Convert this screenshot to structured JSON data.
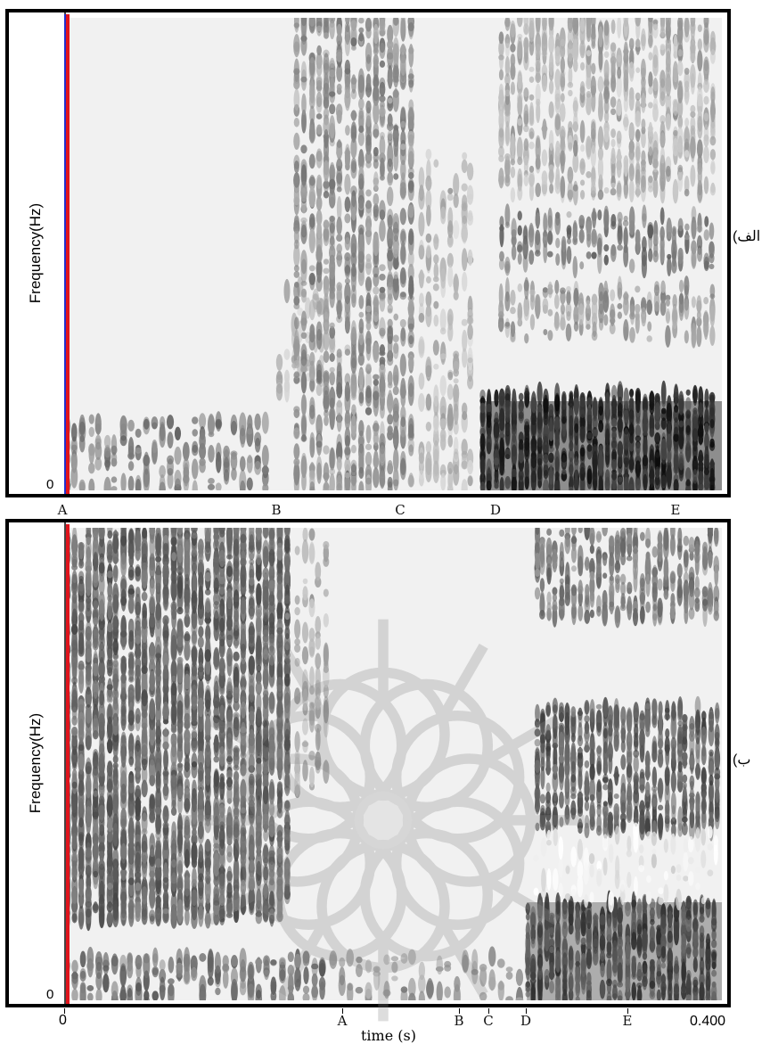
{
  "panel_top": {
    "ylabel": "Frequency(Hz)",
    "y_zero": "0",
    "side_label": "الف)",
    "markers": [
      "A",
      "B",
      "C",
      "D",
      "E"
    ]
  },
  "panel_bottom": {
    "ylabel": "Frequency(Hz)",
    "y_zero": "0",
    "side_label": "ب)",
    "markers": [
      "A",
      "B",
      "C",
      "D",
      "E"
    ]
  },
  "x_axis": {
    "start": "0",
    "end": "0.400",
    "label": "time (s)"
  },
  "colors": {
    "cursor_red": "#e0141c",
    "cursor_blue": "#1f2fd0",
    "frame": "#000000"
  }
}
